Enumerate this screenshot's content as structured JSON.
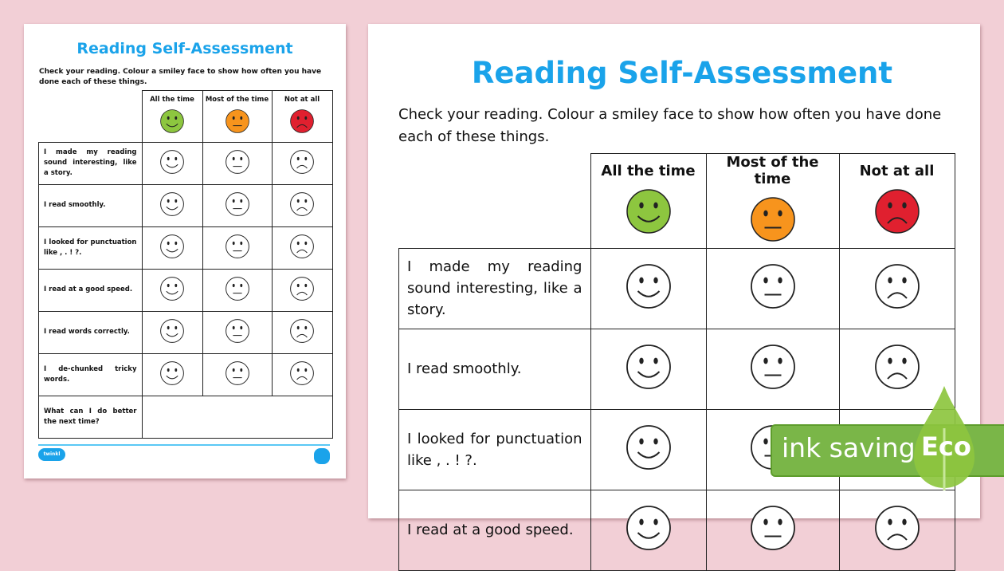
{
  "worksheet": {
    "title": "Reading Self-Assessment",
    "intro": "Check your reading. Colour a smiley face to show how often you have done each of these things.",
    "columns": [
      {
        "label": "All the time",
        "face": "happy",
        "color": "#8dc63f"
      },
      {
        "label": "Most of the time",
        "face": "neutral",
        "color": "#f7941d"
      },
      {
        "label": "Not at all",
        "face": "sad",
        "color": "#e0202f"
      }
    ],
    "rows": [
      "I made my reading sound interesting, like a story.",
      "I read smoothly.",
      "I looked for punctuation like , . ! ?.",
      "I read at a good speed.",
      "I read words correctly.",
      "I de-chunked tricky words."
    ],
    "reflection_prompt": "What can I do better the next time?",
    "logo_text": "twinkl"
  },
  "badge": {
    "ink_saving": "ink saving",
    "eco": "Eco",
    "color": "#7ab648"
  },
  "colors": {
    "background": "#f2cfd6",
    "title": "#1aa3ea"
  }
}
